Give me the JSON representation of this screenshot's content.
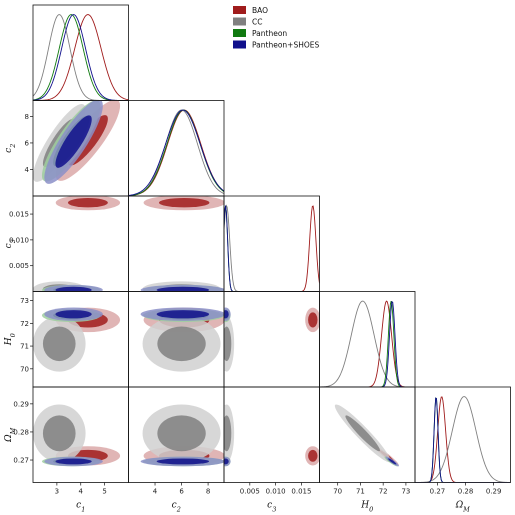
{
  "chart_data": {
    "type": "corner",
    "parameters": [
      {
        "label": "c",
        "sub": "1",
        "range": [
          2,
          6
        ],
        "ticks": [
          3,
          4,
          5
        ]
      },
      {
        "label": "c",
        "sub": "2",
        "range": [
          2,
          9.2
        ],
        "ticks": [
          4,
          6,
          8
        ]
      },
      {
        "label": "c",
        "sub": "3",
        "range": [
          0,
          0.0185
        ],
        "ticks": [
          0.005,
          0.01,
          0.015
        ],
        "tick_labels": [
          "0.005",
          "0.010",
          "0.015"
        ]
      },
      {
        "label": "H",
        "sub": "0",
        "range": [
          69.2,
          73.4
        ],
        "ticks": [
          70,
          71,
          72,
          73
        ]
      },
      {
        "label": "Ω",
        "sub": "M",
        "range": [
          0.262,
          0.296
        ],
        "ticks": [
          0.27,
          0.28,
          0.29
        ]
      }
    ],
    "series": [
      {
        "name": "BAO",
        "color": "#a01c1c",
        "light": "#dba8a8",
        "mean": [
          4.3,
          6.2,
          0.0172,
          72.15,
          0.2715
        ],
        "sd": [
          0.55,
          1.25,
          0.0006,
          0.22,
          0.0014
        ]
      },
      {
        "name": "CC",
        "color": "#808080",
        "light": "#d0d0d0",
        "mean": [
          3.1,
          6.0,
          0.0005,
          71.1,
          0.2795
        ],
        "sd": [
          0.45,
          1.2,
          0.0006,
          0.5,
          0.0042
        ]
      },
      {
        "name": "Pantheon",
        "color": "#107a10",
        "light": "#9fce9f",
        "mean": [
          3.6,
          6.15,
          0.0003,
          72.35,
          0.2695
        ],
        "sd": [
          0.5,
          1.25,
          0.0004,
          0.12,
          0.0007
        ]
      },
      {
        "name": "Pantheon+SHOES",
        "color": "#10108c",
        "light": "#8b8fc8",
        "mean": [
          3.7,
          6.1,
          0.0003,
          72.4,
          0.2695
        ],
        "sd": [
          0.5,
          1.3,
          0.0004,
          0.12,
          0.0007
        ]
      }
    ],
    "legend": {
      "placement": "top-right",
      "entries": [
        "BAO",
        "CC",
        "Pantheon",
        "Pantheon+SHOES"
      ]
    }
  }
}
